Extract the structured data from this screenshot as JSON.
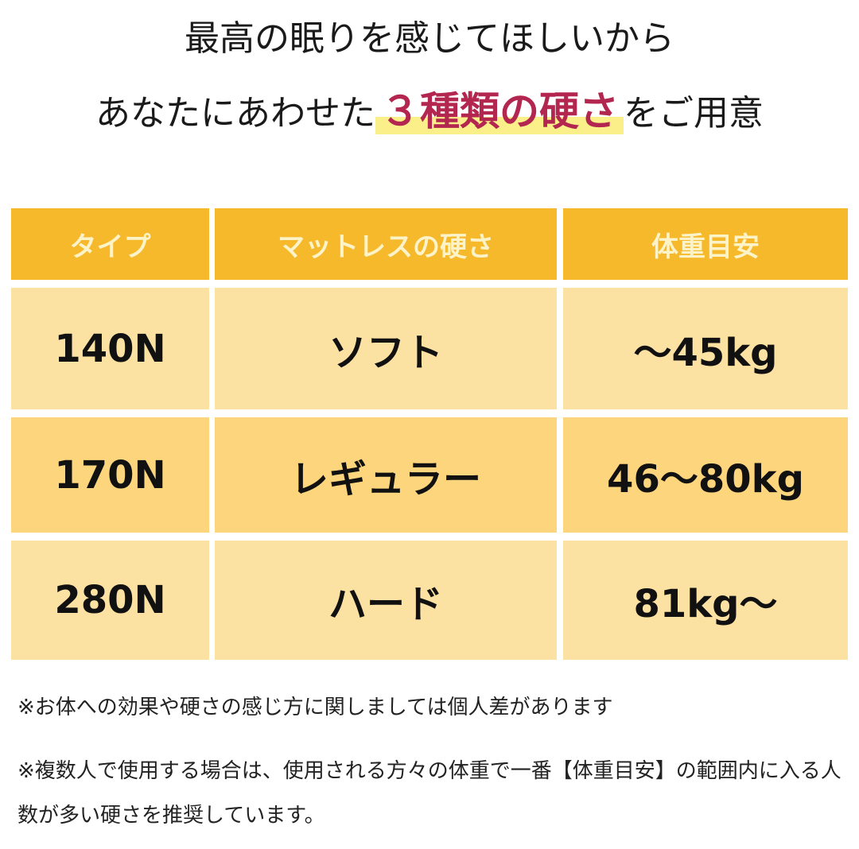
{
  "headline": {
    "line1": "最高の眠りを感じてほしいから",
    "line2_prefix": "あなたにあわせた",
    "line2_highlight": "３種類の硬さ",
    "line2_suffix": "をご用意",
    "highlight_color": "#b3264f"
  },
  "table": {
    "headers": [
      "タイプ",
      "マットレスの硬さ",
      "体重目安"
    ],
    "rows": [
      [
        "140N",
        "ソフト",
        "～45kg"
      ],
      [
        "170N",
        "レギュラー",
        "46～80kg"
      ],
      [
        "280N",
        "ハード",
        "81kg～"
      ]
    ],
    "colors": {
      "header": "#f6b92c",
      "row_light": "#fce2a2",
      "row_dark": "#fcd57c"
    }
  },
  "notes": [
    "※お体への効果や硬さの感じ方に関しましては個人差があります",
    "※複数人で使用する場合は、使用される方々の体重で一番【体重目安】の範囲内に入る人数が多い硬さを推奨しています。"
  ]
}
